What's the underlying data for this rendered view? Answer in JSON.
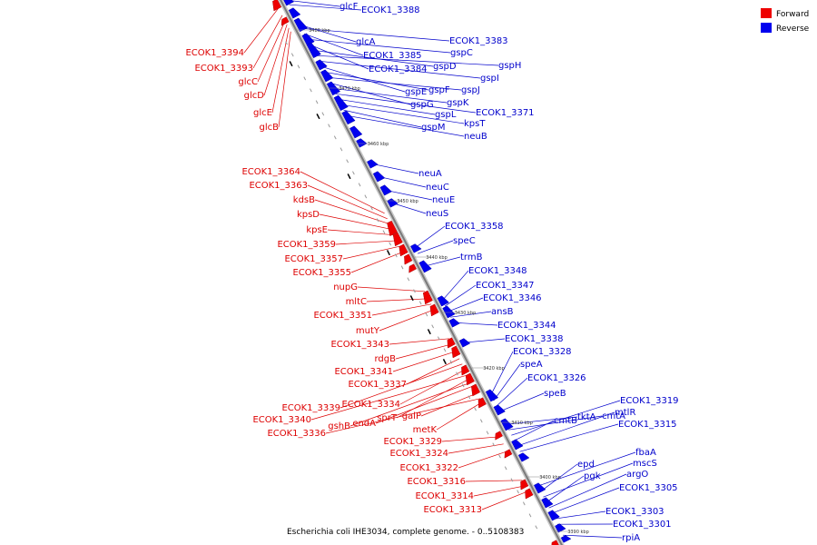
{
  "caption": "Escherichia coli IHE3034, complete genome. - 0..5108383",
  "legend": {
    "forward_label": "Forward",
    "reverse_label": "Reverse",
    "forward_color": "#ee0000",
    "reverse_color": "#0000ee"
  },
  "axis_ticks": [
    "3480 kbp",
    "3470 kbp",
    "3460 kbp",
    "3450 kbp",
    "3440 kbp",
    "3430 kbp",
    "3420 kbp",
    "3410 kbp",
    "3400 kbp",
    "3390 kbp"
  ],
  "forward_labels": [
    "ECOK1_3394",
    "ECOK1_3393",
    "glcC",
    "glcD",
    "glcE",
    "glcB",
    "ECOK1_3364",
    "ECOK1_3363",
    "kdsB",
    "kpsD",
    "kpsE",
    "ECOK1_3359",
    "ECOK1_3357",
    "ECOK1_3355",
    "nupG",
    "mltC",
    "ECOK1_3351",
    "mutY",
    "ECOK1_3343",
    "rdgB",
    "ECOK1_3341",
    "ECOK1_3337",
    "ECOK1_3339",
    "ECOK1_3334",
    "ECOK1_3340",
    "sprT",
    "gshB",
    "endA",
    "galP",
    "ECOK1_3336",
    "metK",
    "ECOK1_3329",
    "ECOK1_3324",
    "ECOK1_3322",
    "ECOK1_3316",
    "ECOK1_3314",
    "ECOK1_3313"
  ],
  "reverse_labels": [
    "glcF",
    "ECOK1_3388",
    "glcA",
    "ECOK1_3383",
    "ECOK1_3385",
    "gspC",
    "ECOK1_3384",
    "gspD",
    "gspH",
    "gspI",
    "gspE",
    "gspF",
    "gspJ",
    "gspG",
    "gspK",
    "ECOK1_3371",
    "gspL",
    "kpsT",
    "gspM",
    "neuB",
    "neuA",
    "neuC",
    "neuE",
    "neuS",
    "ECOK1_3358",
    "speC",
    "trmB",
    "ECOK1_3348",
    "ECOK1_3347",
    "ECOK1_3346",
    "ansB",
    "ECOK1_3344",
    "ECOK1_3338",
    "ECOK1_3328",
    "speA",
    "ECOK1_3326",
    "speB",
    "tktA",
    "cmtA",
    "ECOK1_3319",
    "cmtB",
    "mtlR",
    "ECOK1_3315",
    "fbaA",
    "epd",
    "mscS",
    "pgk",
    "argO",
    "ECOK1_3305",
    "ECOK1_3303",
    "ECOK1_3301",
    "rpiA"
  ]
}
